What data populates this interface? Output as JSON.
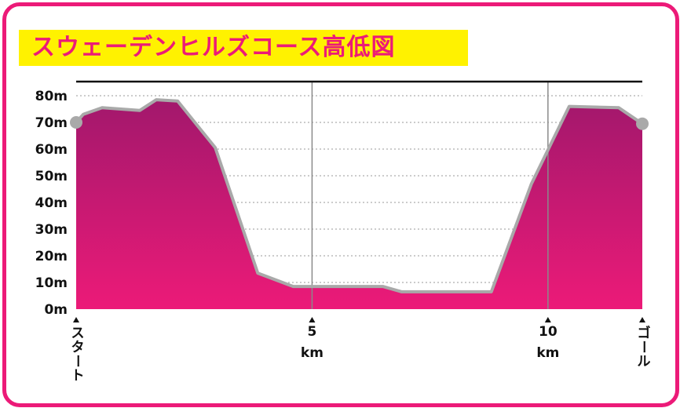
{
  "title": "スウェーデンヒルズコース高低図",
  "colors": {
    "frame": "#ec1a78",
    "title_band": "#fff200",
    "title_text": "#ec1a78",
    "area_top": "#a2186c",
    "area_bottom": "#ec1a78",
    "outline": "#a9a9a9",
    "grid": "#9a9a9a"
  },
  "chart_data": {
    "type": "area",
    "title": "スウェーデンヒルズコース高低図",
    "xlabel": "",
    "ylabel": "",
    "xlim": [
      0,
      12
    ],
    "ylim": [
      0,
      85
    ],
    "y_ticks": [
      0,
      10,
      20,
      30,
      40,
      50,
      60,
      70,
      80
    ],
    "y_tick_labels": [
      "0m",
      "10m",
      "20m",
      "30m",
      "40m",
      "50m",
      "60m",
      "70m",
      "80m"
    ],
    "x_ticks": [
      {
        "x": 0,
        "label": "スタート",
        "vertical": true
      },
      {
        "x": 5,
        "label": "5",
        "unit": "km"
      },
      {
        "x": 10,
        "label": "10",
        "unit": "km"
      },
      {
        "x": 12,
        "label": "ゴール",
        "vertical": true
      }
    ],
    "grid": "horizontal dotted lines every 10m, vertical lines at 5 km and 10 km",
    "x": [
      0,
      0.15,
      0.55,
      1.35,
      1.7,
      2.15,
      2.95,
      3.85,
      4.6,
      6.5,
      6.9,
      8.8,
      9.65,
      10.45,
      11.5,
      12
    ],
    "y": [
      70,
      73,
      75.5,
      74.5,
      78.5,
      78,
      60.5,
      13.5,
      8.5,
      8.5,
      6.5,
      6.5,
      47,
      76,
      75.5,
      69.5
    ],
    "start": {
      "x": 0,
      "y": 70
    },
    "end": {
      "x": 12,
      "y": 69.5
    }
  }
}
